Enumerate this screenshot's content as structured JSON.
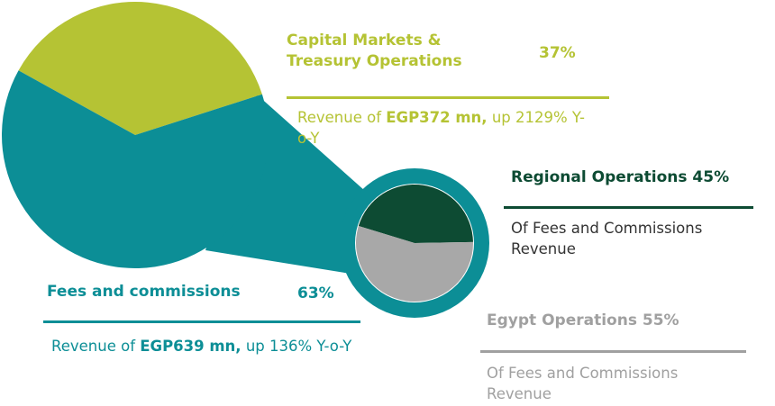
{
  "chart_data": {
    "type": "pie_of_pie",
    "main": {
      "categories": [
        "Capital Markets & Treasury Operations",
        "Fees and commissions"
      ],
      "values": [
        37,
        63
      ],
      "value_labels": [
        "37%",
        "63%"
      ],
      "colors": [
        "#b5c334",
        "#0c8e96"
      ],
      "descriptions": [
        [
          "Revenue of ",
          "EGP372 mn,",
          " up 2129% Y-o-Y"
        ],
        [
          "Revenue of ",
          "EGP639 mn,",
          " up 136% Y-o-Y"
        ]
      ]
    },
    "detail": {
      "categories": [
        "Regional Operations",
        "Egypt Operations"
      ],
      "values": [
        45,
        55
      ],
      "value_labels": [
        "45%",
        "55%"
      ],
      "colors": [
        "#0d4b33",
        "#a8a8a8"
      ],
      "ring_color": "#0c8e96",
      "descriptions": [
        "Of Fees and Commissions Revenue",
        "Of Fees and Commissions Revenue"
      ]
    }
  }
}
